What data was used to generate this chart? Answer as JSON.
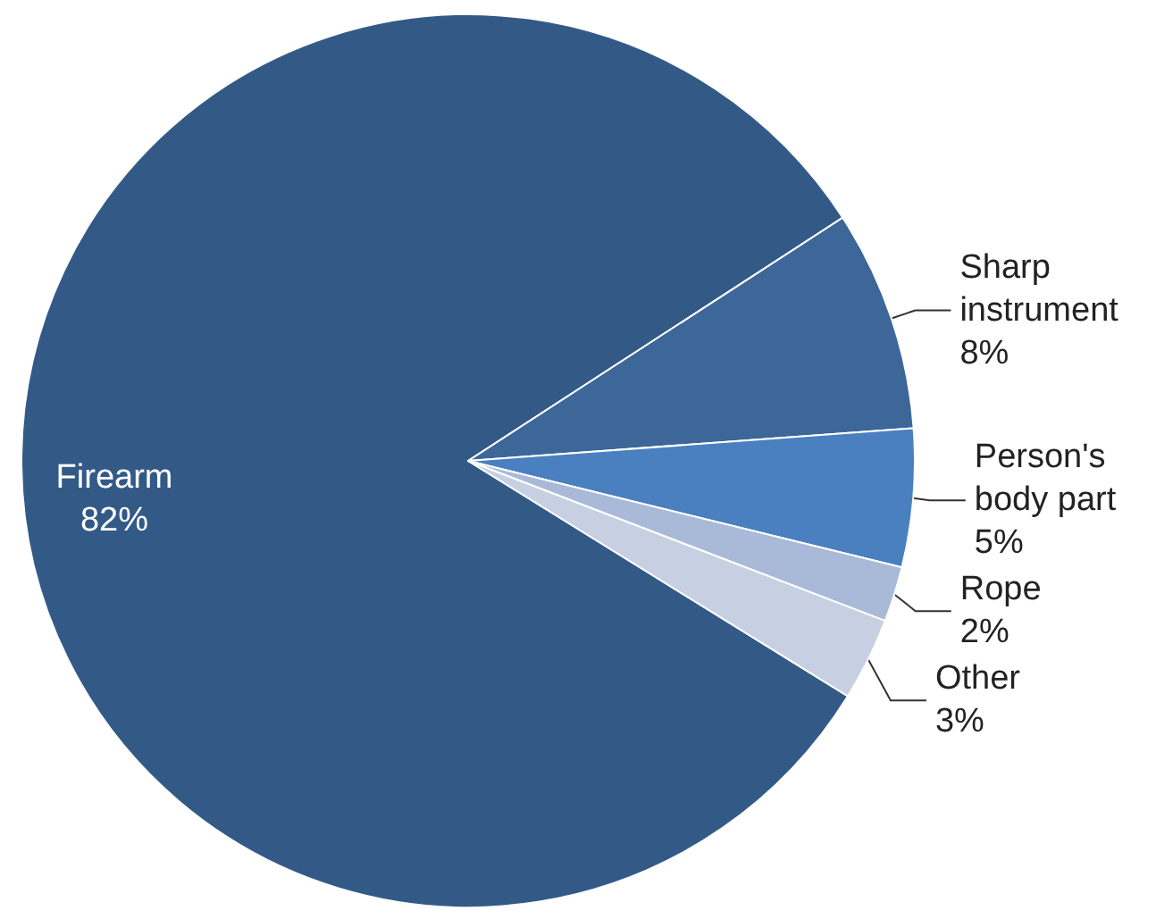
{
  "chart_data": {
    "type": "pie",
    "categories": [
      "Firearm",
      "Sharp instrument",
      "Person's body part",
      "Rope",
      "Other"
    ],
    "values": [
      82,
      8,
      5,
      2,
      3
    ],
    "value_labels": [
      "82%",
      "8%",
      "5%",
      "2%",
      "3%"
    ],
    "colors": [
      "#335a87",
      "#3d6699",
      "#4a80c0",
      "#a9b9d8",
      "#c7d0e2"
    ],
    "legend": false
  }
}
